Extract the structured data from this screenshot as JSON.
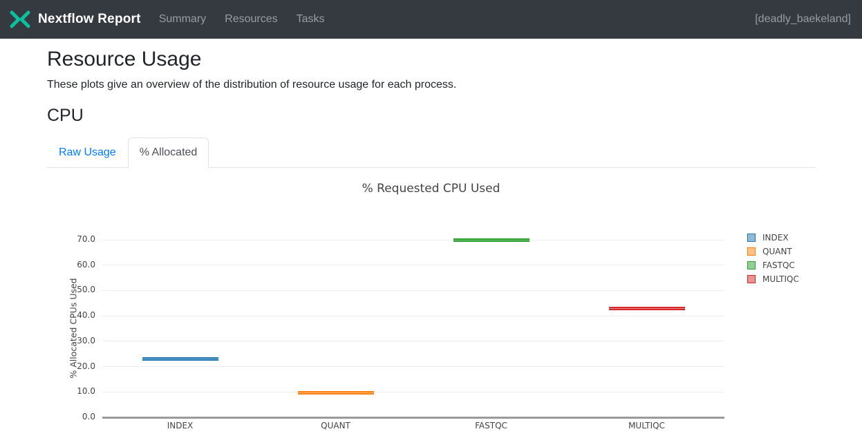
{
  "navbar": {
    "brand": "Nextflow Report",
    "logo_icon": "nextflow-logo",
    "logo_color": "#0dc09d",
    "bg_color": "#343a40",
    "items": [
      {
        "label": "Summary"
      },
      {
        "label": "Resources"
      },
      {
        "label": "Tasks"
      }
    ],
    "run_name": "[deadly_baekeland]"
  },
  "page": {
    "title": "Resource Usage",
    "description": "These plots give an overview of the distribution of resource usage for each process.",
    "section_heading": "CPU",
    "tabs": [
      {
        "label": "Raw Usage",
        "active": false
      },
      {
        "label": "% Allocated",
        "active": true
      }
    ],
    "accent_color": "#007bff"
  },
  "chart_data": {
    "type": "box",
    "title": "% Requested CPU Used",
    "ylabel": "% Allocated CPUs Used",
    "xlabel": "",
    "categories": [
      "INDEX",
      "QUANT",
      "FASTQC",
      "MULTIQC"
    ],
    "series": [
      {
        "name": "INDEX",
        "values": [
          22.9
        ],
        "color": "#1f77b4"
      },
      {
        "name": "QUANT",
        "values": [
          9.8
        ],
        "color": "#ff7f0e"
      },
      {
        "name": "FASTQC",
        "values": [
          69.9
        ],
        "color": "#2ca02c"
      },
      {
        "name": "MULTIQC",
        "values": [
          42.9
        ],
        "color": "#d62728"
      }
    ],
    "yticks": [
      0,
      10,
      20,
      30,
      40,
      50,
      60,
      70
    ],
    "ytick_labels": [
      "0.0",
      "10.0",
      "20.0",
      "30.0",
      "40.0",
      "50.0",
      "60.0",
      "70.0"
    ],
    "ylim": [
      0,
      75
    ],
    "grid": true,
    "legend_position": "right",
    "gridline_color": "#ececec",
    "zeroline_color": "#9a9a9a",
    "text_color": "#444444"
  }
}
